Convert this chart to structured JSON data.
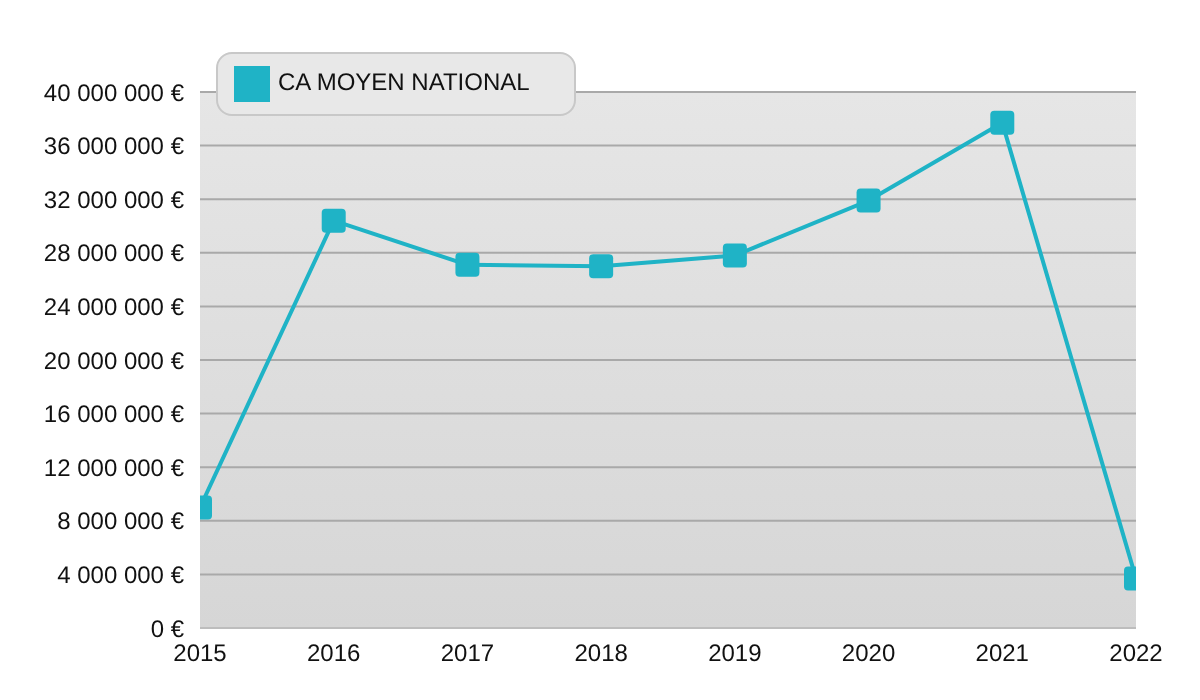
{
  "chart_data": {
    "type": "line",
    "categories": [
      "2015",
      "2016",
      "2017",
      "2018",
      "2019",
      "2020",
      "2021",
      "2022"
    ],
    "series": [
      {
        "name": "CA MOYEN NATIONAL",
        "color": "#1fb3c6",
        "values": [
          9000000,
          30400000,
          27100000,
          27000000,
          27800000,
          31900000,
          37700000,
          3700000
        ]
      }
    ],
    "ylim": [
      0,
      40000000
    ],
    "yticks": [
      {
        "value": 0,
        "label": "0 €"
      },
      {
        "value": 4000000,
        "label": "4 000 000 €"
      },
      {
        "value": 8000000,
        "label": "8 000 000 €"
      },
      {
        "value": 12000000,
        "label": "12 000 000 €"
      },
      {
        "value": 16000000,
        "label": "16 000 000 €"
      },
      {
        "value": 20000000,
        "label": "20 000 000 €"
      },
      {
        "value": 24000000,
        "label": "24 000 000 €"
      },
      {
        "value": 28000000,
        "label": "28 000 000 €"
      },
      {
        "value": 32000000,
        "label": "32 000 000 €"
      },
      {
        "value": 36000000,
        "label": "36 000 000 €"
      },
      {
        "value": 40000000,
        "label": "40 000 000 €"
      }
    ],
    "grid": "y",
    "legend": "top left",
    "marker": "square",
    "line_style": "solid"
  }
}
